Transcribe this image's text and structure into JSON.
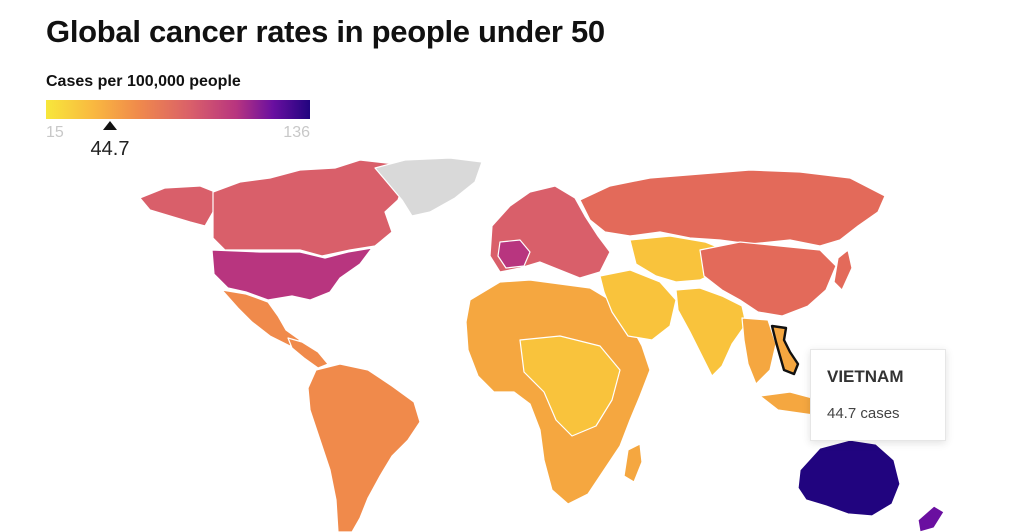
{
  "title": "Global cancer rates in people under 50",
  "legend": {
    "label": "Cases per 100,000 people",
    "min": "15",
    "max": "136",
    "marker_value": "44.7",
    "colors": [
      "#f7e73b",
      "#f9b840",
      "#f08a4b",
      "#d95f6a",
      "#b8357f",
      "#6a0fa0",
      "#21047f"
    ],
    "no_data_color": "#d9d9d9"
  },
  "tooltip": {
    "country": "VIETNAM",
    "value": "44.7 cases"
  },
  "map": {
    "highlighted_country": "Vietnam",
    "regions": [
      {
        "name": "Alaska",
        "color": "#d95f6a"
      },
      {
        "name": "Canada",
        "color": "#d95f6a"
      },
      {
        "name": "Greenland",
        "color": "#d9d9d9"
      },
      {
        "name": "United States",
        "color": "#b8357f"
      },
      {
        "name": "Mexico",
        "color": "#f08a4b"
      },
      {
        "name": "Central America",
        "color": "#f08a4b"
      },
      {
        "name": "South America",
        "color": "#f08a4b"
      },
      {
        "name": "Europe",
        "color": "#d95f6a"
      },
      {
        "name": "France",
        "color": "#b8357f"
      },
      {
        "name": "Russia",
        "color": "#e36a5a"
      },
      {
        "name": "Africa",
        "color": "#f5a740"
      },
      {
        "name": "Central Africa",
        "color": "#f9c33c"
      },
      {
        "name": "Middle East",
        "color": "#f9c33c"
      },
      {
        "name": "Central Asia",
        "color": "#f9c33c"
      },
      {
        "name": "India",
        "color": "#f9c33c"
      },
      {
        "name": "China",
        "color": "#e36a5a"
      },
      {
        "name": "Southeast Asia",
        "color": "#f5a740"
      },
      {
        "name": "Vietnam",
        "color": "#f5a740"
      },
      {
        "name": "Australia",
        "color": "#21047f"
      },
      {
        "name": "New Zealand",
        "color": "#6a0fa0"
      },
      {
        "name": "Madagascar",
        "color": "#f5a740"
      }
    ]
  }
}
